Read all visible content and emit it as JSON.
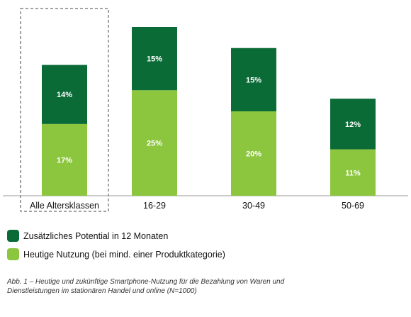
{
  "chart_data": {
    "type": "bar",
    "stacked": true,
    "categories": [
      "Alle Altersklassen",
      "16-29",
      "30-49",
      "50-69"
    ],
    "highlighted_category": "Alle Altersklassen",
    "series": [
      {
        "name": "Heutige Nutzung (bei mind. einer Produktkategorie)",
        "values": [
          17,
          25,
          20,
          11
        ],
        "labels": [
          "17%",
          "25%",
          "20%",
          "11%"
        ],
        "color": "#8cc63f"
      },
      {
        "name": "Zusätzliches Potential in 12 Monaten",
        "values": [
          14,
          15,
          15,
          12
        ],
        "labels": [
          "14%",
          "15%",
          "15%",
          "12%"
        ],
        "color": "#0b6b37"
      }
    ],
    "title": "",
    "xlabel": "",
    "ylabel": "",
    "ylim": [
      0,
      40
    ],
    "grid": false,
    "legend_position": "bottom-left"
  },
  "legend": {
    "items": [
      {
        "label": "Zusätzliches Potential in 12 Monaten",
        "color": "#0b6b37"
      },
      {
        "label": "Heutige Nutzung (bei mind. einer Produktkategorie)",
        "color": "#8cc63f"
      }
    ]
  },
  "caption": {
    "line1": "Abb. 1 – Heutige und zukünftige Smartphone-Nutzung für die Bezahlung von Waren und",
    "line2": "Dienstleistungen im stationären Handel und online (N=1000)"
  }
}
